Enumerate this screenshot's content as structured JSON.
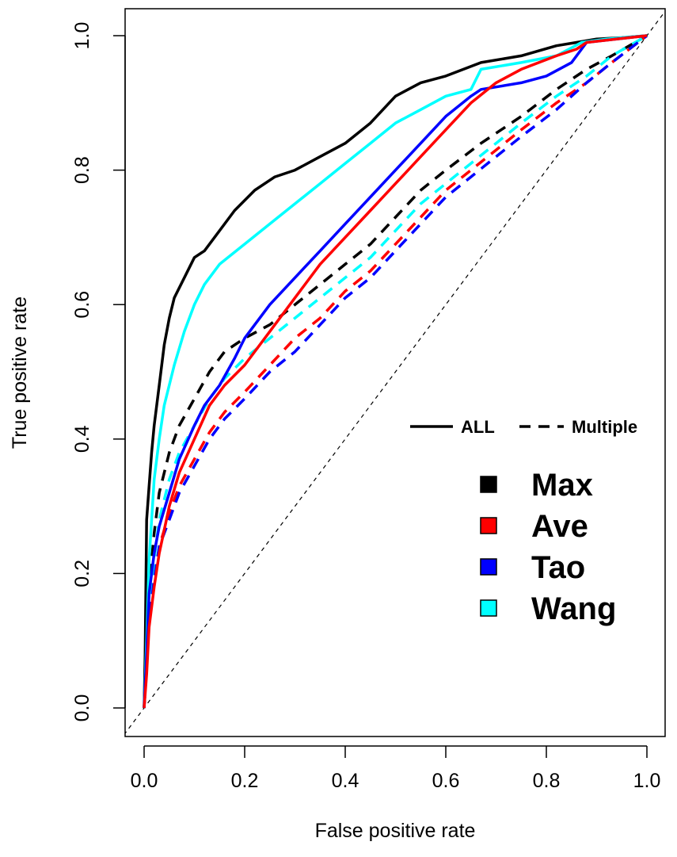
{
  "chart_data": {
    "type": "line",
    "title": "",
    "xlabel": "False positive rate",
    "ylabel": "True positive rate",
    "xlim": [
      0,
      1
    ],
    "ylim": [
      0,
      1
    ],
    "xticks": [
      "0.0",
      "0.2",
      "0.4",
      "0.6",
      "0.8",
      "1.0"
    ],
    "yticks": [
      "0.0",
      "0.2",
      "0.4",
      "0.6",
      "0.8",
      "1.0"
    ],
    "grid": false,
    "legend_placement": "right",
    "line_legend": [
      {
        "label": "ALL",
        "style": "solid"
      },
      {
        "label": "Multiple",
        "style": "dashed"
      }
    ],
    "method_legend": [
      {
        "label": "Max",
        "color": "#000000"
      },
      {
        "label": "Ave",
        "color": "#ff0000"
      },
      {
        "label": "Tao",
        "color": "#0000ff"
      },
      {
        "label": "Wang",
        "color": "#00ffff"
      }
    ],
    "series": [
      {
        "method": "Max",
        "set": "ALL",
        "color": "#000000",
        "style": "solid",
        "x": [
          0,
          0.002,
          0.005,
          0.01,
          0.015,
          0.02,
          0.03,
          0.04,
          0.05,
          0.06,
          0.08,
          0.1,
          0.12,
          0.15,
          0.18,
          0.22,
          0.26,
          0.3,
          0.35,
          0.4,
          0.45,
          0.5,
          0.55,
          0.6,
          0.67,
          0.75,
          0.82,
          0.86,
          0.9,
          0.95,
          1.0
        ],
        "y": [
          0,
          0.08,
          0.28,
          0.33,
          0.38,
          0.42,
          0.48,
          0.54,
          0.58,
          0.61,
          0.64,
          0.67,
          0.68,
          0.71,
          0.74,
          0.77,
          0.79,
          0.8,
          0.82,
          0.84,
          0.87,
          0.91,
          0.93,
          0.94,
          0.96,
          0.97,
          0.985,
          0.99,
          0.995,
          0.997,
          1.0
        ]
      },
      {
        "method": "Wang",
        "set": "ALL",
        "color": "#00ffff",
        "style": "solid",
        "x": [
          0,
          0.005,
          0.01,
          0.02,
          0.03,
          0.04,
          0.06,
          0.08,
          0.1,
          0.12,
          0.15,
          0.2,
          0.25,
          0.3,
          0.35,
          0.4,
          0.45,
          0.5,
          0.55,
          0.6,
          0.65,
          0.67,
          0.75,
          0.82,
          0.87,
          0.92,
          1.0
        ],
        "y": [
          0,
          0.1,
          0.22,
          0.34,
          0.4,
          0.45,
          0.51,
          0.56,
          0.6,
          0.63,
          0.66,
          0.69,
          0.72,
          0.75,
          0.78,
          0.81,
          0.84,
          0.87,
          0.89,
          0.91,
          0.92,
          0.95,
          0.96,
          0.97,
          0.99,
          0.995,
          1.0
        ]
      },
      {
        "method": "Tao",
        "set": "ALL",
        "color": "#0000ff",
        "style": "solid",
        "x": [
          0,
          0.005,
          0.01,
          0.02,
          0.03,
          0.05,
          0.07,
          0.1,
          0.12,
          0.15,
          0.18,
          0.2,
          0.25,
          0.3,
          0.35,
          0.4,
          0.45,
          0.5,
          0.55,
          0.6,
          0.65,
          0.67,
          0.75,
          0.8,
          0.85,
          0.88,
          1.0
        ],
        "y": [
          0,
          0.08,
          0.17,
          0.23,
          0.27,
          0.32,
          0.37,
          0.42,
          0.45,
          0.48,
          0.52,
          0.55,
          0.6,
          0.64,
          0.68,
          0.72,
          0.76,
          0.8,
          0.84,
          0.88,
          0.91,
          0.92,
          0.93,
          0.94,
          0.96,
          0.99,
          1.0
        ]
      },
      {
        "method": "Ave",
        "set": "ALL",
        "color": "#ff0000",
        "style": "solid",
        "x": [
          0,
          0.005,
          0.01,
          0.02,
          0.03,
          0.05,
          0.07,
          0.1,
          0.13,
          0.16,
          0.2,
          0.25,
          0.3,
          0.35,
          0.4,
          0.45,
          0.5,
          0.55,
          0.6,
          0.65,
          0.7,
          0.75,
          0.82,
          0.86,
          0.88,
          1.0
        ],
        "y": [
          0,
          0.05,
          0.12,
          0.18,
          0.23,
          0.3,
          0.35,
          0.4,
          0.45,
          0.48,
          0.51,
          0.56,
          0.61,
          0.66,
          0.7,
          0.74,
          0.78,
          0.82,
          0.86,
          0.9,
          0.93,
          0.95,
          0.97,
          0.98,
          0.99,
          1.0
        ]
      },
      {
        "method": "Max",
        "set": "Multiple",
        "color": "#000000",
        "style": "dashed",
        "x": [
          0,
          0.005,
          0.01,
          0.02,
          0.03,
          0.05,
          0.07,
          0.1,
          0.13,
          0.16,
          0.2,
          0.25,
          0.3,
          0.35,
          0.4,
          0.45,
          0.5,
          0.55,
          0.6,
          0.67,
          0.75,
          0.82,
          0.88,
          0.93,
          1.0
        ],
        "y": [
          0,
          0.08,
          0.18,
          0.26,
          0.32,
          0.38,
          0.42,
          0.46,
          0.5,
          0.53,
          0.55,
          0.57,
          0.6,
          0.63,
          0.66,
          0.69,
          0.73,
          0.77,
          0.8,
          0.84,
          0.88,
          0.92,
          0.95,
          0.97,
          1.0
        ]
      },
      {
        "method": "Wang",
        "set": "Multiple",
        "color": "#00ffff",
        "style": "dashed",
        "x": [
          0,
          0.005,
          0.01,
          0.02,
          0.03,
          0.05,
          0.07,
          0.1,
          0.13,
          0.16,
          0.2,
          0.25,
          0.3,
          0.35,
          0.4,
          0.45,
          0.5,
          0.55,
          0.6,
          0.65,
          0.7,
          0.75,
          0.82,
          0.88,
          0.93,
          1.0
        ],
        "y": [
          0,
          0.07,
          0.15,
          0.22,
          0.28,
          0.34,
          0.38,
          0.42,
          0.46,
          0.49,
          0.52,
          0.55,
          0.58,
          0.61,
          0.64,
          0.67,
          0.71,
          0.75,
          0.78,
          0.81,
          0.84,
          0.87,
          0.91,
          0.94,
          0.97,
          1.0
        ]
      },
      {
        "method": "Ave",
        "set": "Multiple",
        "color": "#ff0000",
        "style": "dashed",
        "x": [
          0,
          0.005,
          0.01,
          0.02,
          0.03,
          0.05,
          0.07,
          0.1,
          0.13,
          0.16,
          0.2,
          0.25,
          0.3,
          0.35,
          0.4,
          0.45,
          0.5,
          0.55,
          0.6,
          0.65,
          0.7,
          0.75,
          0.82,
          0.88,
          0.93,
          1.0
        ],
        "y": [
          0,
          0.06,
          0.13,
          0.19,
          0.24,
          0.29,
          0.33,
          0.37,
          0.41,
          0.44,
          0.47,
          0.51,
          0.55,
          0.58,
          0.62,
          0.65,
          0.69,
          0.73,
          0.77,
          0.8,
          0.83,
          0.86,
          0.9,
          0.93,
          0.96,
          1.0
        ]
      },
      {
        "method": "Tao",
        "set": "Multiple",
        "color": "#0000ff",
        "style": "dashed",
        "x": [
          0,
          0.005,
          0.01,
          0.02,
          0.03,
          0.05,
          0.07,
          0.1,
          0.13,
          0.16,
          0.2,
          0.25,
          0.3,
          0.35,
          0.4,
          0.45,
          0.5,
          0.55,
          0.6,
          0.65,
          0.7,
          0.75,
          0.82,
          0.88,
          0.93,
          1.0
        ],
        "y": [
          0,
          0.06,
          0.13,
          0.19,
          0.24,
          0.28,
          0.32,
          0.36,
          0.4,
          0.43,
          0.46,
          0.5,
          0.53,
          0.57,
          0.61,
          0.64,
          0.68,
          0.72,
          0.76,
          0.79,
          0.82,
          0.85,
          0.89,
          0.93,
          0.96,
          1.0
        ]
      },
      {
        "method": "chance",
        "set": "reference",
        "color": "#000000",
        "style": "dotted",
        "x": [
          -0.04,
          1.04
        ],
        "y": [
          -0.04,
          1.04
        ]
      }
    ]
  }
}
